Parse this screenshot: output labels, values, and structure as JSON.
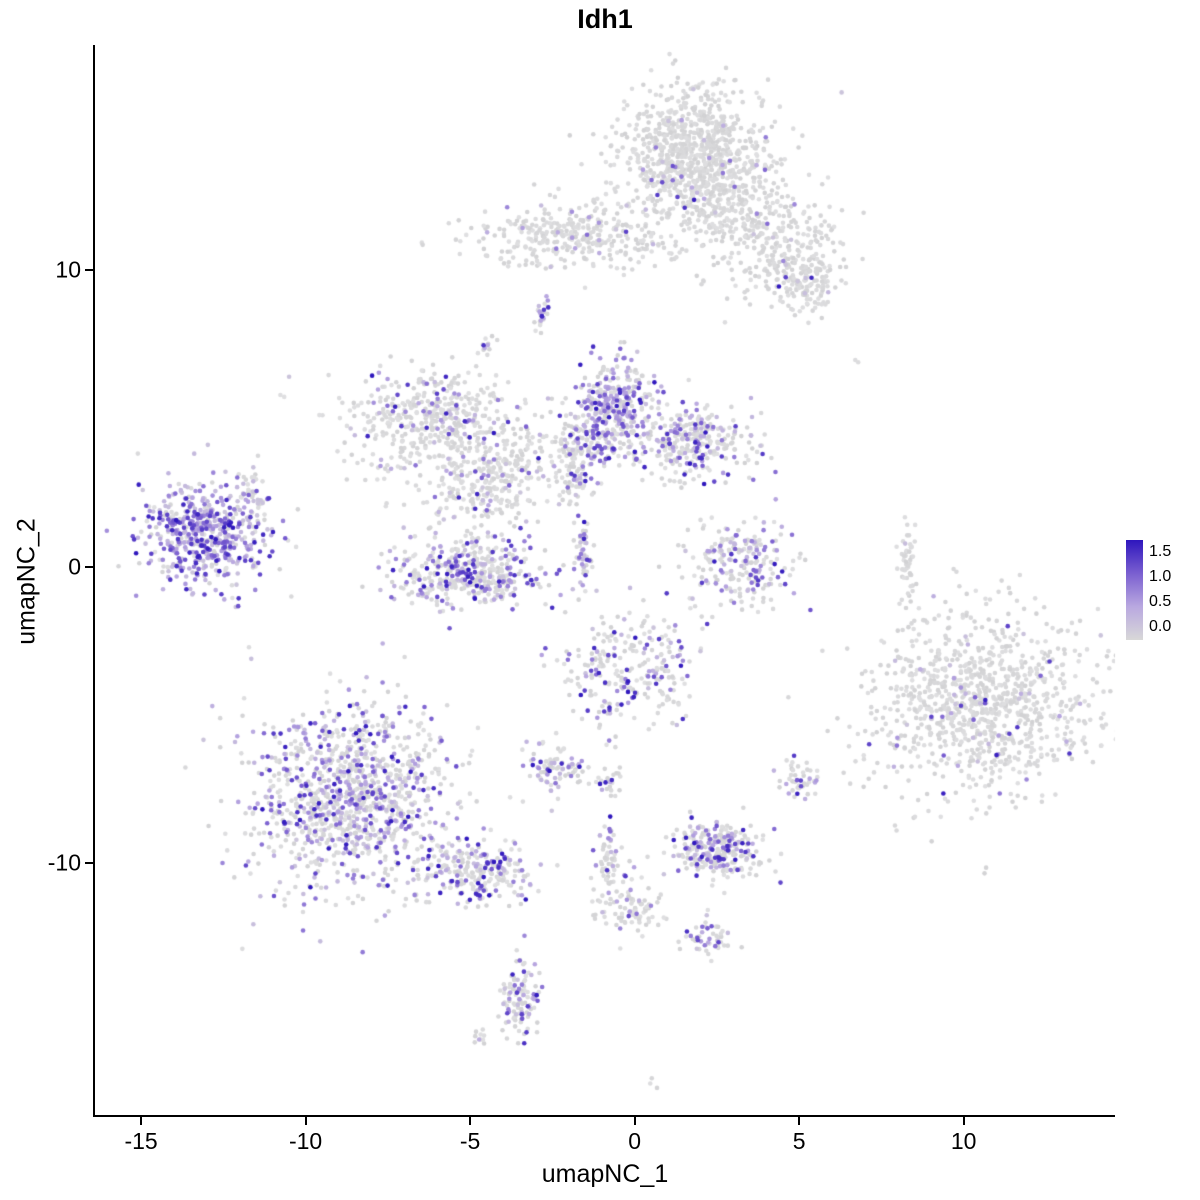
{
  "chart_data": {
    "type": "scatter",
    "title": "Idh1",
    "xlabel": "umapNC_1",
    "ylabel": "umapNC_2",
    "xlim": [
      -16.4,
      14.6
    ],
    "ylim": [
      -18.5,
      17.6
    ],
    "x_ticks": [
      "-15",
      "-10",
      "-5",
      "0",
      "5",
      "10"
    ],
    "x_tick_values": [
      -15,
      -10,
      -5,
      0,
      5,
      10
    ],
    "y_ticks": [
      "10",
      "0",
      "-10"
    ],
    "y_tick_values": [
      10,
      0,
      -10
    ],
    "grid": "off",
    "legend_position": "right",
    "legend": {
      "ticks": [
        "1.5",
        "1.0",
        "0.5",
        "0.0"
      ],
      "vmax": 1.65
    },
    "colors": {
      "grey": "#d8d8d8",
      "gradient_stops": [
        "#d8d8d8",
        "#b9a8e0",
        "#7a5fd0",
        "#2e16bd"
      ],
      "axis": "#000000"
    },
    "point_radius": 2.3,
    "clusters": [
      {
        "x": 1.8,
        "y": 13.9,
        "sx": 1.15,
        "sy": 1.15,
        "n": 900,
        "f": 0.03
      },
      {
        "x": 2.9,
        "y": 12.1,
        "sx": 0.9,
        "sy": 0.8,
        "n": 200,
        "f": 0.03
      },
      {
        "x": 4.8,
        "y": 10.8,
        "sx": 0.75,
        "sy": 0.9,
        "n": 180,
        "f": 0.04
      },
      {
        "x": 5.2,
        "y": 9.4,
        "sx": 0.45,
        "sy": 0.45,
        "n": 90,
        "f": 0.06
      },
      {
        "x": 4.0,
        "y": 9.9,
        "sx": 1.0,
        "sy": 0.6,
        "n": 60,
        "f": 0.05
      },
      {
        "x": -1.8,
        "y": 11.2,
        "sx": 1.5,
        "sy": 0.55,
        "n": 350,
        "f": 0.08
      },
      {
        "x": -2.8,
        "y": 8.5,
        "sx": 0.12,
        "sy": 0.35,
        "n": 25,
        "f": 0.5
      },
      {
        "x": -4.4,
        "y": 7.4,
        "sx": 0.15,
        "sy": 0.2,
        "n": 12,
        "f": 0.6
      },
      {
        "x": -6.2,
        "y": 5.0,
        "sx": 1.3,
        "sy": 0.9,
        "n": 450,
        "f": 0.15
      },
      {
        "x": -3.9,
        "y": 3.6,
        "sx": 0.8,
        "sy": 0.6,
        "n": 150,
        "f": 0.15
      },
      {
        "x": -0.6,
        "y": 5.3,
        "sx": 0.6,
        "sy": 0.8,
        "n": 350,
        "f": 0.55
      },
      {
        "x": 1.8,
        "y": 4.2,
        "sx": 0.95,
        "sy": 0.6,
        "n": 300,
        "f": 0.35
      },
      {
        "x": -1.7,
        "y": 4.1,
        "sx": 0.5,
        "sy": 0.6,
        "n": 120,
        "f": 0.3
      },
      {
        "x": -1.8,
        "y": 2.9,
        "sx": 0.25,
        "sy": 0.4,
        "n": 40,
        "f": 0.3
      },
      {
        "x": -4.7,
        "y": 2.3,
        "sx": 1.0,
        "sy": 0.5,
        "n": 150,
        "f": 0.2
      },
      {
        "x": -5.0,
        "y": -0.2,
        "sx": 1.2,
        "sy": 0.55,
        "n": 450,
        "f": 0.35
      },
      {
        "x": -13.0,
        "y": 1.1,
        "sx": 1.0,
        "sy": 0.85,
        "n": 550,
        "f": 0.8
      },
      {
        "x": -11.6,
        "y": 2.5,
        "sx": 0.25,
        "sy": 0.35,
        "n": 40,
        "f": 0.5
      },
      {
        "x": -1.6,
        "y": 0.6,
        "sx": 0.15,
        "sy": 0.65,
        "n": 50,
        "f": 0.45
      },
      {
        "x": 3.2,
        "y": 0.1,
        "sx": 0.85,
        "sy": 0.75,
        "n": 220,
        "f": 0.3
      },
      {
        "x": 8.3,
        "y": 0.0,
        "sx": 0.12,
        "sy": 0.8,
        "n": 45,
        "f": 0.05
      },
      {
        "x": -0.3,
        "y": -3.6,
        "sx": 1.0,
        "sy": 1.0,
        "n": 260,
        "f": 0.3
      },
      {
        "x": 10.6,
        "y": -4.6,
        "sx": 1.7,
        "sy": 1.5,
        "n": 1000,
        "f": 0.04
      },
      {
        "x": -8.5,
        "y": -7.8,
        "sx": 1.5,
        "sy": 1.6,
        "n": 1100,
        "f": 0.4
      },
      {
        "x": -4.9,
        "y": -10.3,
        "sx": 0.9,
        "sy": 0.5,
        "n": 250,
        "f": 0.35
      },
      {
        "x": -2.4,
        "y": -6.9,
        "sx": 0.5,
        "sy": 0.45,
        "n": 90,
        "f": 0.3
      },
      {
        "x": -0.9,
        "y": -7.2,
        "sx": 0.25,
        "sy": 0.25,
        "n": 25,
        "f": 0.2
      },
      {
        "x": 5.0,
        "y": -7.2,
        "sx": 0.3,
        "sy": 0.3,
        "n": 45,
        "f": 0.25
      },
      {
        "x": 2.5,
        "y": -9.5,
        "sx": 0.7,
        "sy": 0.45,
        "n": 280,
        "f": 0.35
      },
      {
        "x": -0.8,
        "y": -9.9,
        "sx": 0.2,
        "sy": 0.55,
        "n": 60,
        "f": 0.3
      },
      {
        "x": 0.0,
        "y": -11.5,
        "sx": 0.55,
        "sy": 0.55,
        "n": 90,
        "f": 0.2
      },
      {
        "x": 2.3,
        "y": -12.5,
        "sx": 0.35,
        "sy": 0.3,
        "n": 50,
        "f": 0.4
      },
      {
        "x": -3.5,
        "y": -14.6,
        "sx": 0.3,
        "sy": 0.8,
        "n": 110,
        "f": 0.35
      },
      {
        "x": -4.7,
        "y": -15.9,
        "sx": 0.15,
        "sy": 0.15,
        "n": 10,
        "f": 0.1
      },
      {
        "x": 6.8,
        "y": 6.9,
        "sx": 0.1,
        "sy": 0.1,
        "n": 2,
        "f": 0
      },
      {
        "x": -10.8,
        "y": 5.8,
        "sx": 0.1,
        "sy": 0.1,
        "n": 2,
        "f": 0
      },
      {
        "x": 0.5,
        "y": -17.4,
        "sx": 0.1,
        "sy": 0.1,
        "n": 3,
        "f": 0
      }
    ]
  }
}
